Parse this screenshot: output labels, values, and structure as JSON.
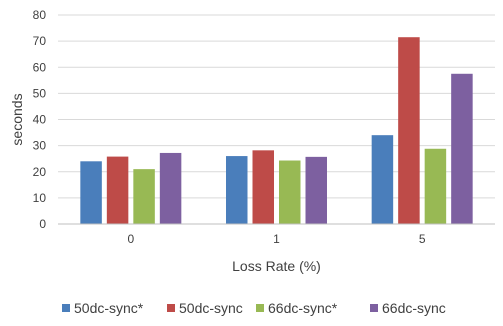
{
  "chart_data": {
    "type": "bar",
    "title": "",
    "xlabel": "Loss Rate (%)",
    "ylabel": "seconds",
    "categories": [
      "0",
      "1",
      "5"
    ],
    "ylim": [
      0,
      80
    ],
    "yticks": [
      0,
      10,
      20,
      30,
      40,
      50,
      60,
      70,
      80
    ],
    "grid": "horizontal",
    "legend_position": "bottom",
    "series": [
      {
        "name": "50dc-sync*",
        "color": "#4a7ebb",
        "values": [
          24,
          26,
          34
        ]
      },
      {
        "name": "50dc-sync",
        "color": "#be4b48",
        "values": [
          25.8,
          28.2,
          71.5
        ]
      },
      {
        "name": "66dc-sync*",
        "color": "#98b954",
        "values": [
          21,
          24.3,
          28.8
        ]
      },
      {
        "name": "66dc-sync",
        "color": "#7d60a0",
        "values": [
          27.2,
          25.7,
          57.5
        ]
      }
    ]
  }
}
